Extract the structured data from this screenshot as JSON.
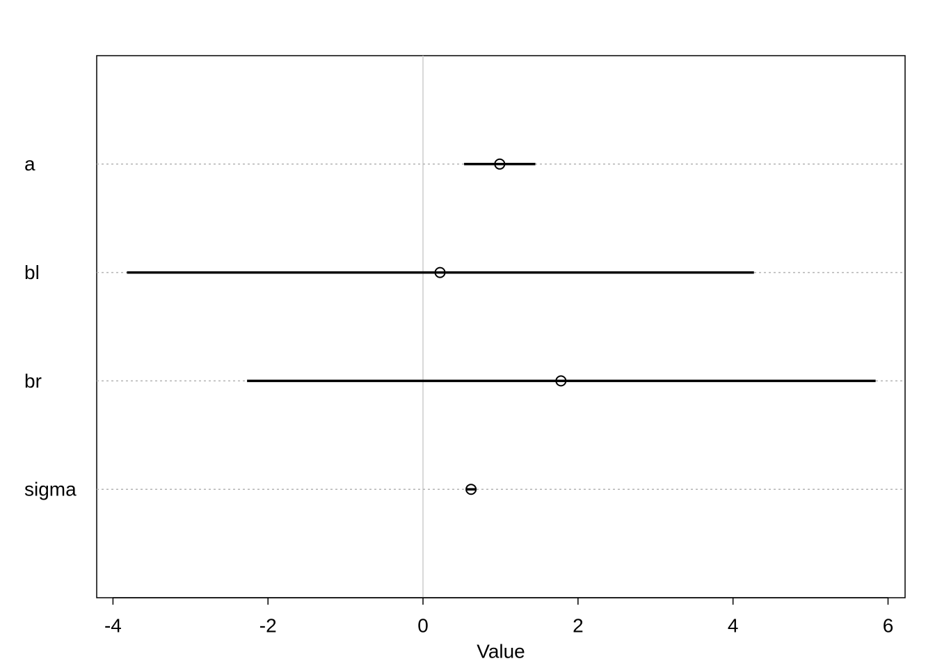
{
  "chart_data": {
    "type": "interval",
    "categories": [
      "a",
      "bl",
      "br",
      "sigma"
    ],
    "values": [
      0.99,
      0.22,
      1.78,
      0.62
    ],
    "lower": [
      0.53,
      -3.82,
      -2.27,
      0.56
    ],
    "upper": [
      1.45,
      4.27,
      5.84,
      0.69
    ],
    "xlabel": "Value",
    "xlim": [
      -4.21,
      6.22
    ],
    "xticks": [
      -4,
      -2,
      0,
      2,
      4,
      6
    ],
    "vline": 0,
    "grid": true,
    "color": "#000000"
  }
}
